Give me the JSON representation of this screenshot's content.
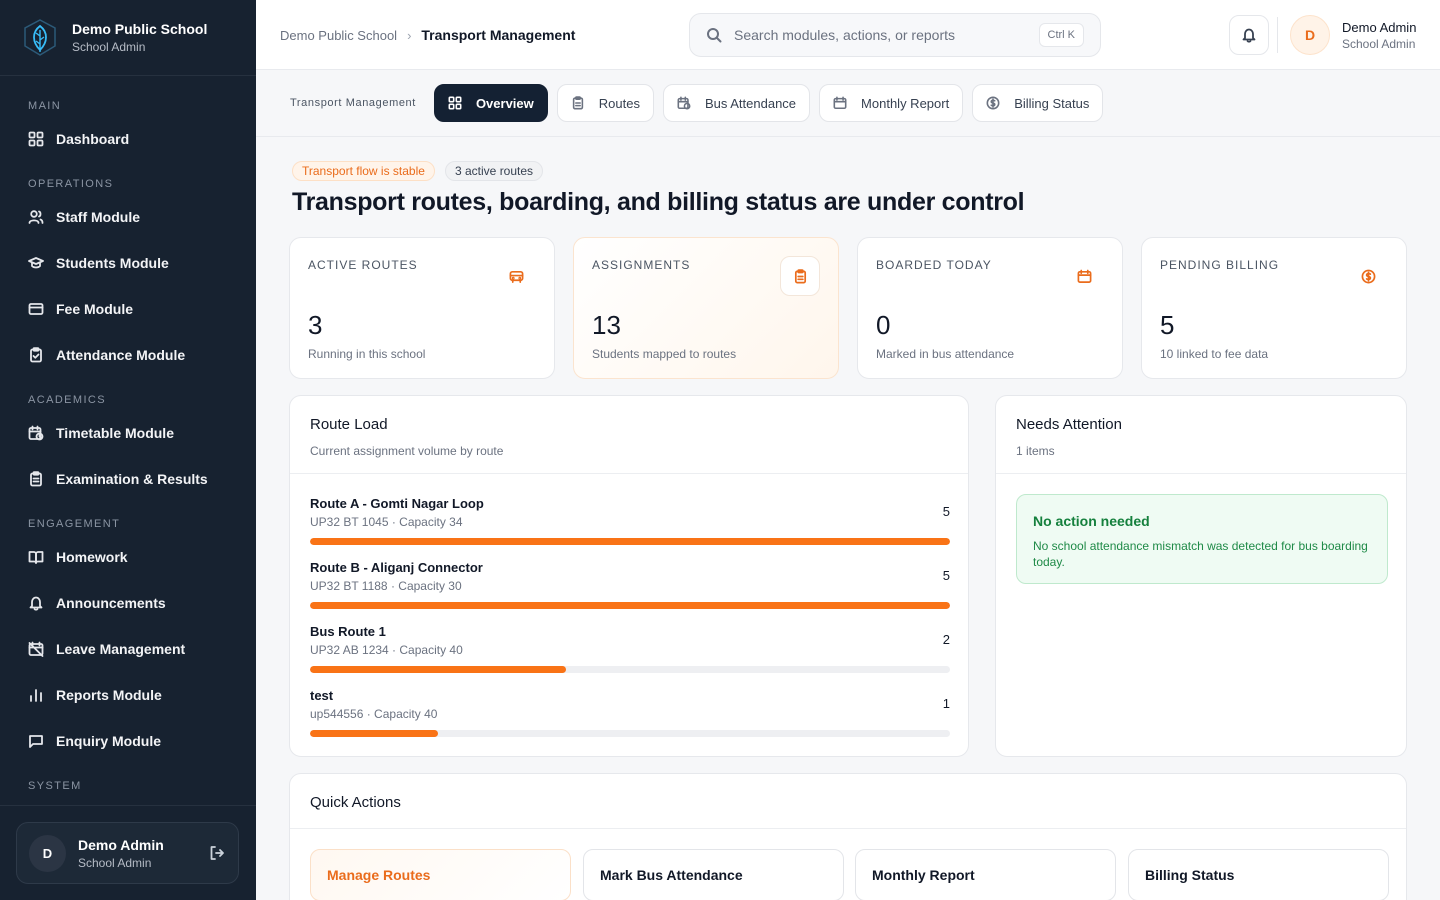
{
  "brand": {
    "name": "Demo Public School",
    "subtitle": "School Admin"
  },
  "sidebar": {
    "sections": [
      {
        "label": "MAIN",
        "items": [
          {
            "label": "Dashboard",
            "icon": "dashboard-grid-icon"
          }
        ]
      },
      {
        "label": "OPERATIONS",
        "items": [
          {
            "label": "Staff Module",
            "icon": "users-icon"
          },
          {
            "label": "Students Module",
            "icon": "graduation-cap-icon"
          },
          {
            "label": "Fee Module",
            "icon": "credit-card-icon"
          },
          {
            "label": "Attendance Module",
            "icon": "clipboard-check-icon"
          }
        ]
      },
      {
        "label": "ACADEMICS",
        "items": [
          {
            "label": "Timetable Module",
            "icon": "calendar-clock-icon"
          },
          {
            "label": "Examination & Results",
            "icon": "clipboard-list-icon"
          }
        ]
      },
      {
        "label": "ENGAGEMENT",
        "items": [
          {
            "label": "Homework",
            "icon": "book-open-icon"
          },
          {
            "label": "Announcements",
            "icon": "bell-icon"
          },
          {
            "label": "Leave Management",
            "icon": "calendar-off-icon"
          },
          {
            "label": "Reports Module",
            "icon": "bar-chart-icon"
          },
          {
            "label": "Enquiry Module",
            "icon": "message-square-icon"
          }
        ]
      },
      {
        "label": "SYSTEM",
        "items": []
      }
    ],
    "user": {
      "initial": "D",
      "name": "Demo Admin",
      "role": "School Admin"
    }
  },
  "header": {
    "breadcrumb": [
      "Demo Public School",
      "Transport Management"
    ],
    "search": {
      "placeholder": "Search modules, actions, or reports",
      "shortcut": "Ctrl K"
    },
    "user": {
      "initial": "D",
      "name": "Demo Admin",
      "role": "School Admin"
    }
  },
  "tabs": {
    "label": "Transport Management",
    "items": [
      {
        "label": "Overview",
        "icon": "grid-icon",
        "active": true
      },
      {
        "label": "Routes",
        "icon": "clipboard-icon"
      },
      {
        "label": "Bus Attendance",
        "icon": "calendar-clock-icon"
      },
      {
        "label": "Monthly Report",
        "icon": "calendar-icon"
      },
      {
        "label": "Billing Status",
        "icon": "dollar-circle-icon"
      }
    ]
  },
  "main": {
    "pills": {
      "status": "Transport flow is stable",
      "routes": "3 active routes"
    },
    "headline": "Transport routes, boarding, and billing status are under control",
    "stats": [
      {
        "title": "ACTIVE ROUTES",
        "value": "3",
        "sub": "Running in this school",
        "icon": "bus-icon"
      },
      {
        "title": "ASSIGNMENTS",
        "value": "13",
        "sub": "Students mapped to routes",
        "icon": "clipboard-icon"
      },
      {
        "title": "BOARDED TODAY",
        "value": "0",
        "sub": "Marked in bus attendance",
        "icon": "calendar-check-icon"
      },
      {
        "title": "PENDING BILLING",
        "value": "5",
        "sub": "10 linked to fee data",
        "icon": "dollar-circle-icon"
      }
    ],
    "route_load": {
      "title": "Route Load",
      "subtitle": "Current assignment volume by route",
      "routes": [
        {
          "name": "Route A - Gomti Nagar Loop",
          "detail": "UP32 BT 1045 · Capacity 34",
          "count": "5",
          "fill_ratio": 1.0
        },
        {
          "name": "Route B - Aliganj Connector",
          "detail": "UP32 BT 1188 · Capacity 30",
          "count": "5",
          "fill_ratio": 1.0
        },
        {
          "name": "Bus Route 1",
          "detail": "UP32 AB 1234 · Capacity 40",
          "count": "2",
          "fill_ratio": 0.4
        },
        {
          "name": "test",
          "detail": "up544556 · Capacity 40",
          "count": "1",
          "fill_ratio": 0.2
        }
      ]
    },
    "needs_attention": {
      "title": "Needs Attention",
      "subtitle": "1 items",
      "notice_title": "No action needed",
      "notice_text": "No school attendance mismatch was detected for bus boarding today."
    },
    "quick_actions": {
      "title": "Quick Actions",
      "items": [
        "Manage Routes",
        "Mark Bus Attendance",
        "Monthly Report",
        "Billing Status"
      ]
    }
  },
  "colors": {
    "accent": "#f97316",
    "sidebar": "#172230",
    "success": "#15803d"
  }
}
